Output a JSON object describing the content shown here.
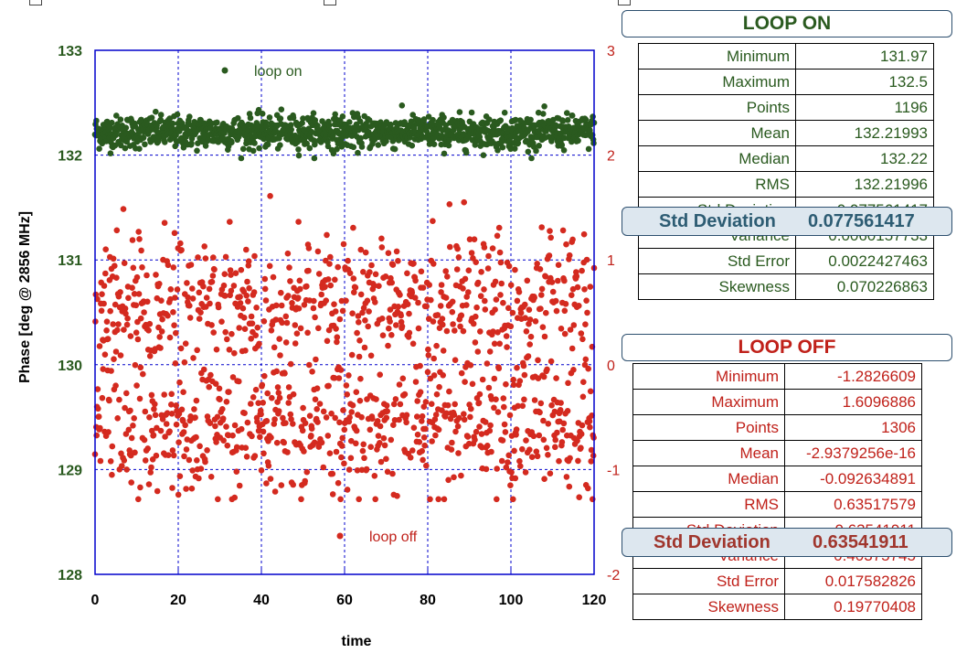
{
  "chart_data": {
    "type": "scatter",
    "xlabel": "time",
    "ylabel": "Phase [deg @ 2856 MHz]",
    "xlim": [
      0,
      120
    ],
    "ylim": [
      128,
      133
    ],
    "y2lim": [
      -2,
      3
    ],
    "x_ticks": [
      0,
      20,
      40,
      60,
      80,
      100,
      120
    ],
    "y_ticks": [
      128,
      129,
      130,
      131,
      132,
      133
    ],
    "y2_ticks": [
      -2,
      -1,
      0,
      1,
      2,
      3
    ],
    "series": [
      {
        "name": "loop on",
        "axis": "left",
        "color": "#2a5a1f",
        "n": 1196,
        "mean": 132.22,
        "std": 0.0776,
        "min": 131.97,
        "max": 132.5
      },
      {
        "name": "loop off",
        "axis": "right",
        "color": "#d42a1f",
        "n": 1306,
        "mean": 0,
        "std": 0.6354,
        "min": -1.2827,
        "max": 1.6097
      }
    ]
  },
  "loop_on": {
    "title": "LOOP ON",
    "rows": [
      {
        "label": "Minimum",
        "value": "131.97"
      },
      {
        "label": "Maximum",
        "value": "132.5"
      },
      {
        "label": "Points",
        "value": "1196"
      },
      {
        "label": "Mean",
        "value": "132.21993"
      },
      {
        "label": "Median",
        "value": "132.22"
      },
      {
        "label": "RMS",
        "value": "132.21996"
      },
      {
        "label": "Std Deviation",
        "value": "0.077561417"
      },
      {
        "label": "Variance",
        "value": "0.0060157733"
      },
      {
        "label": "Std Error",
        "value": "0.0022427463"
      },
      {
        "label": "Skewness",
        "value": "0.070226863"
      }
    ]
  },
  "loop_off": {
    "title": "LOOP OFF",
    "rows": [
      {
        "label": "Minimum",
        "value": "-1.2826609"
      },
      {
        "label": "Maximum",
        "value": "1.6096886"
      },
      {
        "label": "Points",
        "value": "1306"
      },
      {
        "label": "Mean",
        "value": "-2.9379256e-16"
      },
      {
        "label": "Median",
        "value": "-0.092634891"
      },
      {
        "label": "RMS",
        "value": "0.63517579"
      },
      {
        "label": "Std Deviation",
        "value": "0.63541911"
      },
      {
        "label": "Variance",
        "value": "0.40375745"
      },
      {
        "label": "Std Error",
        "value": "0.017582826"
      },
      {
        "label": "Skewness",
        "value": "0.19770408"
      }
    ]
  }
}
